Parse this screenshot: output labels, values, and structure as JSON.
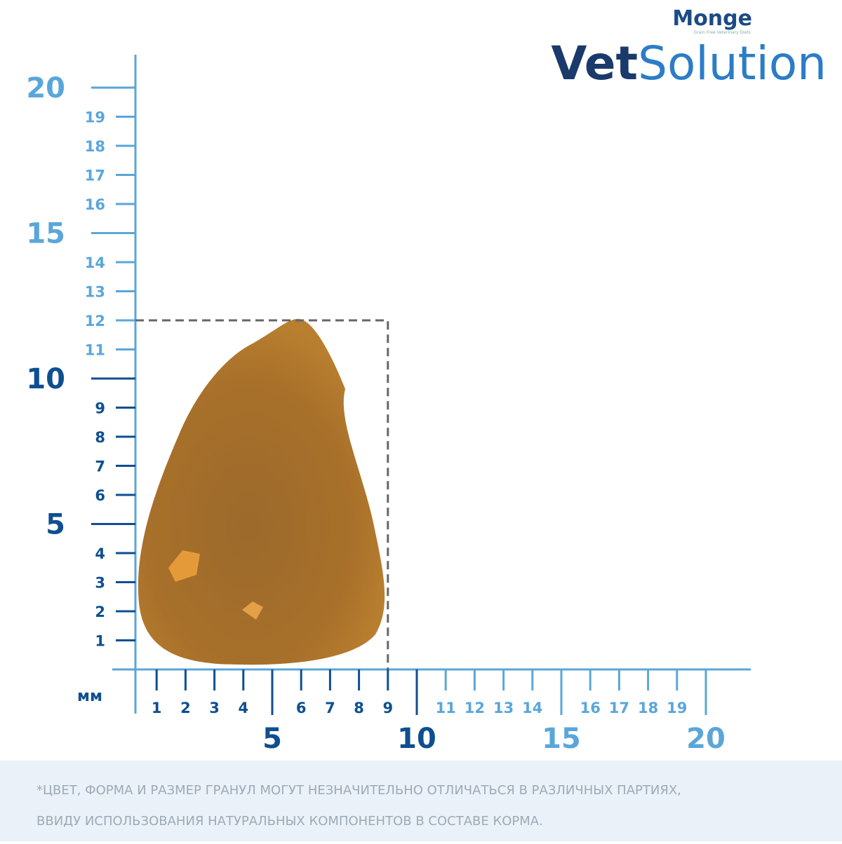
{
  "brand": {
    "maker": "Monge",
    "tagline": "Grain Free Veterinary Diets",
    "product_bold": "Vet",
    "product_light": "Solution"
  },
  "ruler": {
    "unit": "мм",
    "y_minor": [
      1,
      2,
      3,
      4,
      6,
      7,
      8,
      9,
      11,
      12,
      13,
      14,
      16,
      17,
      18,
      19
    ],
    "y_major": [
      5,
      10,
      15,
      20
    ],
    "x_minor": [
      1,
      2,
      3,
      4,
      6,
      7,
      8,
      9,
      11,
      12,
      13,
      14,
      16,
      17,
      18,
      19
    ],
    "x_major": [
      5,
      10,
      15,
      20
    ]
  },
  "kibble": {
    "width": 9,
    "height": 12
  },
  "note": {
    "lines": [
      "*ЦВЕТ, ФОРМА И РАЗМЕР ГРАНУЛ МОГУТ НЕЗНАЧИТЕЛЬНО ОТЛИЧАТЬСЯ В РАЗЛИЧНЫХ ПАРТИЯХ,",
      "ВВИДУ ИСПОЛЬЗОВАНИЯ НАТУРАЛЬНЫХ КОМПОНЕНТОВ В СОСТАВЕ КОРМА."
    ]
  }
}
